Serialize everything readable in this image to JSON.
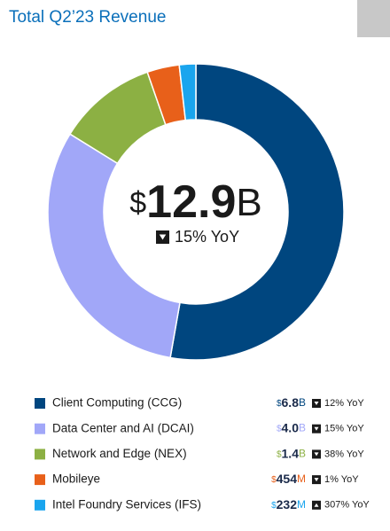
{
  "chart_data": {
    "type": "donut",
    "title": "Total Q2’23 Revenue",
    "total_label": "$12.9B",
    "total_change_label": "15% YoY",
    "total_change_direction": "down",
    "categories": [
      "Client Computing (CCG)",
      "Data Center and AI (DCAI)",
      "Network and Edge (NEX)",
      "Mobileye",
      "Intel Foundry Services (IFS)"
    ],
    "values": [
      6.8,
      4.0,
      1.4,
      0.454,
      0.232
    ],
    "value_labels": [
      "$6.8B",
      "$4.0B",
      "$1.4B",
      "$454M",
      "$232M"
    ],
    "colors": [
      "#00467f",
      "#a1a7f8",
      "#8cb043",
      "#e8601a",
      "#1aa5ee"
    ],
    "yoy_labels": [
      "12% YoY",
      "15% YoY",
      "38% YoY",
      "1% YoY",
      "307% YoY"
    ],
    "yoy_directions": [
      "down",
      "down",
      "down",
      "down",
      "up"
    ]
  }
}
